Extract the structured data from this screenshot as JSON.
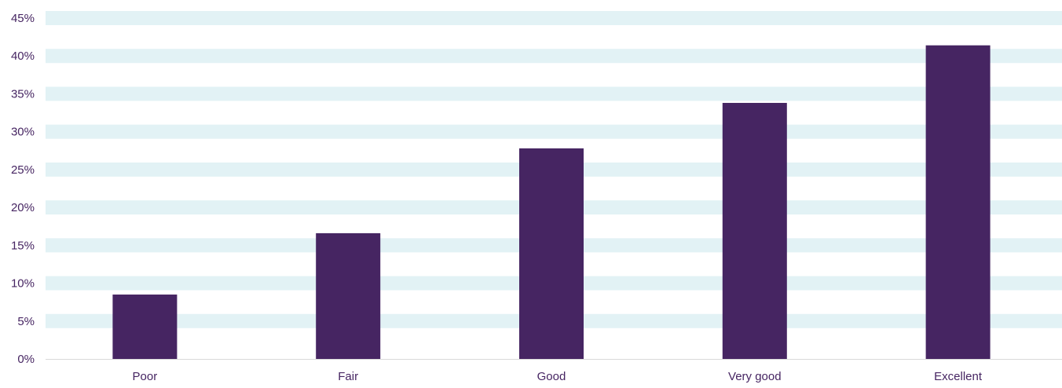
{
  "chart_data": {
    "type": "bar",
    "categories": [
      "Poor",
      "Fair",
      "Good",
      "Very good",
      "Excellent"
    ],
    "values": [
      8.5,
      16.6,
      27.8,
      33.8,
      41.4
    ],
    "yticks": [
      "0%",
      "5%",
      "10%",
      "15%",
      "20%",
      "25%",
      "30%",
      "35%",
      "40%",
      "45%"
    ],
    "ylim": [
      0,
      45
    ],
    "ytick_step": 5,
    "y_unit": "%",
    "grid": "horizontal bands",
    "legend": "none",
    "title": "",
    "xlabel": "",
    "ylabel": "",
    "colors": {
      "bar": "#462562",
      "band": "#e2f2f5",
      "axis_text": "#462562",
      "baseline": "#d9d9d9"
    }
  }
}
